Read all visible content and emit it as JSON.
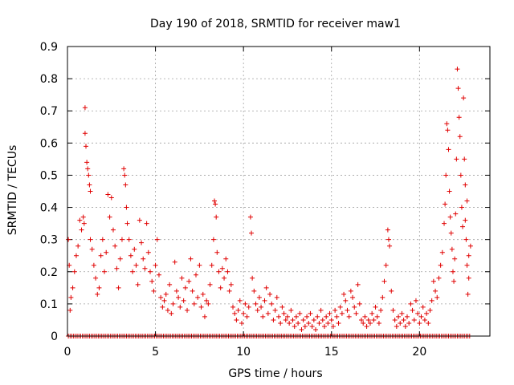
{
  "chart_data": {
    "type": "scatter",
    "title": "Day 190 of 2018, SRMTID for receiver maw1",
    "xlabel": "GPS time / hours",
    "ylabel": "SRMTID / TECUs",
    "xlim": [
      0,
      24
    ],
    "ylim": [
      0,
      0.9
    ],
    "xticks": [
      0,
      5,
      10,
      15,
      20
    ],
    "xtick_labels": [
      "0",
      "5",
      "10",
      "15",
      "20"
    ],
    "yticks": [
      0,
      0.1,
      0.2,
      0.3,
      0.4,
      0.5,
      0.6,
      0.7,
      0.8,
      0.9
    ],
    "ytick_labels": [
      "0",
      "0.1",
      "0.2",
      "0.3",
      "0.4",
      "0.5",
      "0.6",
      "0.7",
      "0.8",
      "0.9"
    ],
    "grid": true,
    "marker": "+",
    "color": "#e00000",
    "series": [
      {
        "name": "SRMTID",
        "points": [
          [
            0.05,
            0.3
          ],
          [
            0.1,
            0.22
          ],
          [
            0.15,
            0.08
          ],
          [
            0.2,
            0.12
          ],
          [
            0.3,
            0.15
          ],
          [
            0.4,
            0.2
          ],
          [
            0.5,
            0.25
          ],
          [
            0.6,
            0.28
          ],
          [
            0.7,
            0.36
          ],
          [
            0.8,
            0.33
          ],
          [
            0.9,
            0.37
          ],
          [
            0.95,
            0.35
          ],
          [
            1.0,
            0.71
          ],
          [
            1.0,
            0.63
          ],
          [
            1.05,
            0.59
          ],
          [
            1.1,
            0.54
          ],
          [
            1.15,
            0.52
          ],
          [
            1.2,
            0.5
          ],
          [
            1.25,
            0.47
          ],
          [
            1.3,
            0.45
          ],
          [
            1.3,
            0.3
          ],
          [
            1.4,
            0.27
          ],
          [
            1.5,
            0.22
          ],
          [
            1.6,
            0.18
          ],
          [
            1.7,
            0.13
          ],
          [
            1.8,
            0.15
          ],
          [
            1.9,
            0.25
          ],
          [
            2.0,
            0.3
          ],
          [
            2.1,
            0.2
          ],
          [
            2.2,
            0.26
          ],
          [
            2.3,
            0.44
          ],
          [
            2.4,
            0.37
          ],
          [
            2.5,
            0.43
          ],
          [
            2.6,
            0.33
          ],
          [
            2.7,
            0.28
          ],
          [
            2.8,
            0.21
          ],
          [
            2.9,
            0.15
          ],
          [
            3.0,
            0.24
          ],
          [
            3.1,
            0.3
          ],
          [
            3.2,
            0.52
          ],
          [
            3.25,
            0.5
          ],
          [
            3.3,
            0.47
          ],
          [
            3.35,
            0.4
          ],
          [
            3.4,
            0.35
          ],
          [
            3.5,
            0.3
          ],
          [
            3.6,
            0.25
          ],
          [
            3.7,
            0.2
          ],
          [
            3.8,
            0.27
          ],
          [
            3.9,
            0.22
          ],
          [
            4.0,
            0.16
          ],
          [
            4.1,
            0.36
          ],
          [
            4.2,
            0.29
          ],
          [
            4.3,
            0.24
          ],
          [
            4.4,
            0.21
          ],
          [
            4.5,
            0.35
          ],
          [
            4.6,
            0.26
          ],
          [
            4.7,
            0.2
          ],
          [
            4.8,
            0.17
          ],
          [
            4.9,
            0.14
          ],
          [
            5.0,
            0.22
          ],
          [
            5.1,
            0.3
          ],
          [
            5.2,
            0.19
          ],
          [
            5.3,
            0.12
          ],
          [
            5.4,
            0.09
          ],
          [
            5.5,
            0.11
          ],
          [
            5.6,
            0.13
          ],
          [
            5.7,
            0.08
          ],
          [
            5.8,
            0.16
          ],
          [
            5.9,
            0.07
          ],
          [
            6.0,
            0.1
          ],
          [
            6.1,
            0.23
          ],
          [
            6.2,
            0.14
          ],
          [
            6.3,
            0.12
          ],
          [
            6.4,
            0.09
          ],
          [
            6.5,
            0.18
          ],
          [
            6.6,
            0.11
          ],
          [
            6.7,
            0.15
          ],
          [
            6.8,
            0.08
          ],
          [
            6.9,
            0.17
          ],
          [
            7.0,
            0.24
          ],
          [
            7.1,
            0.14
          ],
          [
            7.2,
            0.1
          ],
          [
            7.3,
            0.19
          ],
          [
            7.4,
            0.12
          ],
          [
            7.5,
            0.22
          ],
          [
            7.6,
            0.09
          ],
          [
            7.7,
            0.13
          ],
          [
            7.8,
            0.06
          ],
          [
            7.9,
            0.11
          ],
          [
            8.0,
            0.1
          ],
          [
            8.1,
            0.16
          ],
          [
            8.2,
            0.22
          ],
          [
            8.3,
            0.3
          ],
          [
            8.35,
            0.42
          ],
          [
            8.4,
            0.41
          ],
          [
            8.45,
            0.37
          ],
          [
            8.5,
            0.26
          ],
          [
            8.6,
            0.2
          ],
          [
            8.7,
            0.15
          ],
          [
            8.8,
            0.21
          ],
          [
            8.9,
            0.18
          ],
          [
            9.0,
            0.24
          ],
          [
            9.1,
            0.2
          ],
          [
            9.2,
            0.14
          ],
          [
            9.3,
            0.16
          ],
          [
            9.4,
            0.09
          ],
          [
            9.5,
            0.07
          ],
          [
            9.6,
            0.05
          ],
          [
            9.7,
            0.08
          ],
          [
            9.8,
            0.11
          ],
          [
            9.9,
            0.04
          ],
          [
            10.0,
            0.07
          ],
          [
            10.1,
            0.1
          ],
          [
            10.2,
            0.06
          ],
          [
            10.3,
            0.09
          ],
          [
            10.4,
            0.37
          ],
          [
            10.45,
            0.32
          ],
          [
            10.5,
            0.18
          ],
          [
            10.6,
            0.14
          ],
          [
            10.7,
            0.1
          ],
          [
            10.8,
            0.08
          ],
          [
            10.9,
            0.12
          ],
          [
            11.0,
            0.09
          ],
          [
            11.1,
            0.06
          ],
          [
            11.2,
            0.11
          ],
          [
            11.3,
            0.15
          ],
          [
            11.4,
            0.07
          ],
          [
            11.5,
            0.13
          ],
          [
            11.6,
            0.1
          ],
          [
            11.7,
            0.05
          ],
          [
            11.8,
            0.08
          ],
          [
            11.9,
            0.12
          ],
          [
            12.0,
            0.06
          ],
          [
            12.1,
            0.04
          ],
          [
            12.2,
            0.09
          ],
          [
            12.3,
            0.07
          ],
          [
            12.4,
            0.05
          ],
          [
            12.5,
            0.06
          ],
          [
            12.6,
            0.04
          ],
          [
            12.7,
            0.08
          ],
          [
            12.8,
            0.05
          ],
          [
            12.9,
            0.03
          ],
          [
            13.0,
            0.06
          ],
          [
            13.1,
            0.04
          ],
          [
            13.2,
            0.07
          ],
          [
            13.3,
            0.02
          ],
          [
            13.4,
            0.05
          ],
          [
            13.5,
            0.03
          ],
          [
            13.6,
            0.06
          ],
          [
            13.7,
            0.04
          ],
          [
            13.8,
            0.07
          ],
          [
            13.9,
            0.03
          ],
          [
            14.0,
            0.05
          ],
          [
            14.1,
            0.02
          ],
          [
            14.2,
            0.06
          ],
          [
            14.3,
            0.04
          ],
          [
            14.4,
            0.08
          ],
          [
            14.5,
            0.05
          ],
          [
            14.6,
            0.03
          ],
          [
            14.7,
            0.06
          ],
          [
            14.8,
            0.04
          ],
          [
            14.9,
            0.07
          ],
          [
            15.0,
            0.05
          ],
          [
            15.1,
            0.03
          ],
          [
            15.2,
            0.08
          ],
          [
            15.3,
            0.06
          ],
          [
            15.4,
            0.04
          ],
          [
            15.5,
            0.09
          ],
          [
            15.6,
            0.07
          ],
          [
            15.7,
            0.13
          ],
          [
            15.8,
            0.11
          ],
          [
            15.9,
            0.08
          ],
          [
            16.0,
            0.06
          ],
          [
            16.1,
            0.14
          ],
          [
            16.2,
            0.12
          ],
          [
            16.3,
            0.09
          ],
          [
            16.4,
            0.07
          ],
          [
            16.5,
            0.16
          ],
          [
            16.6,
            0.1
          ],
          [
            16.7,
            0.05
          ],
          [
            16.8,
            0.04
          ],
          [
            16.9,
            0.06
          ],
          [
            17.0,
            0.03
          ],
          [
            17.1,
            0.05
          ],
          [
            17.2,
            0.04
          ],
          [
            17.3,
            0.07
          ],
          [
            17.4,
            0.05
          ],
          [
            17.5,
            0.09
          ],
          [
            17.6,
            0.06
          ],
          [
            17.7,
            0.04
          ],
          [
            17.8,
            0.08
          ],
          [
            17.9,
            0.12
          ],
          [
            18.0,
            0.17
          ],
          [
            18.1,
            0.22
          ],
          [
            18.2,
            0.33
          ],
          [
            18.25,
            0.3
          ],
          [
            18.3,
            0.28
          ],
          [
            18.4,
            0.14
          ],
          [
            18.5,
            0.08
          ],
          [
            18.6,
            0.05
          ],
          [
            18.7,
            0.03
          ],
          [
            18.8,
            0.06
          ],
          [
            18.9,
            0.04
          ],
          [
            19.0,
            0.07
          ],
          [
            19.1,
            0.05
          ],
          [
            19.2,
            0.03
          ],
          [
            19.3,
            0.06
          ],
          [
            19.4,
            0.04
          ],
          [
            19.5,
            0.1
          ],
          [
            19.6,
            0.08
          ],
          [
            19.7,
            0.05
          ],
          [
            19.8,
            0.11
          ],
          [
            19.9,
            0.07
          ],
          [
            20.0,
            0.04
          ],
          [
            20.1,
            0.06
          ],
          [
            20.2,
            0.09
          ],
          [
            20.3,
            0.05
          ],
          [
            20.4,
            0.07
          ],
          [
            20.5,
            0.04
          ],
          [
            20.6,
            0.08
          ],
          [
            20.7,
            0.11
          ],
          [
            20.8,
            0.17
          ],
          [
            20.9,
            0.14
          ],
          [
            21.0,
            0.12
          ],
          [
            21.1,
            0.18
          ],
          [
            21.2,
            0.22
          ],
          [
            21.3,
            0.26
          ],
          [
            21.4,
            0.35
          ],
          [
            21.45,
            0.41
          ],
          [
            21.5,
            0.5
          ],
          [
            21.55,
            0.66
          ],
          [
            21.6,
            0.64
          ],
          [
            21.65,
            0.58
          ],
          [
            21.7,
            0.45
          ],
          [
            21.75,
            0.37
          ],
          [
            21.8,
            0.32
          ],
          [
            21.85,
            0.27
          ],
          [
            21.9,
            0.2
          ],
          [
            21.95,
            0.17
          ],
          [
            22.0,
            0.24
          ],
          [
            22.05,
            0.38
          ],
          [
            22.1,
            0.55
          ],
          [
            22.15,
            0.83
          ],
          [
            22.2,
            0.77
          ],
          [
            22.25,
            0.68
          ],
          [
            22.3,
            0.62
          ],
          [
            22.35,
            0.5
          ],
          [
            22.4,
            0.4
          ],
          [
            22.45,
            0.34
          ],
          [
            22.5,
            0.74
          ],
          [
            22.55,
            0.55
          ],
          [
            22.6,
            0.47
          ],
          [
            22.65,
            0.3
          ],
          [
            22.7,
            0.22
          ],
          [
            22.75,
            0.13
          ],
          [
            22.8,
            0.18
          ],
          [
            22.8,
            0.25
          ],
          [
            22.7,
            0.42
          ],
          [
            22.6,
            0.36
          ],
          [
            22.9,
            0.28
          ]
        ]
      }
    ]
  }
}
